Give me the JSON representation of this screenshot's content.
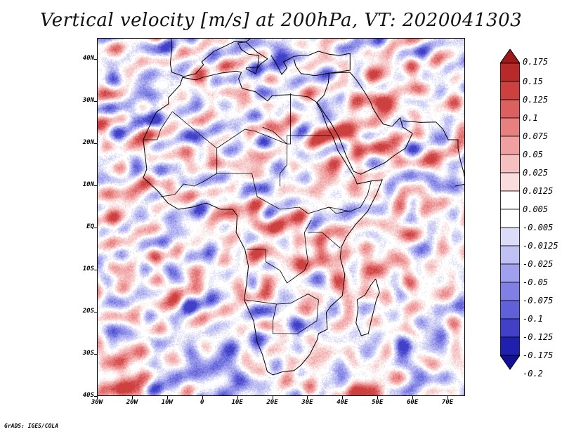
{
  "title": "Vertical velocity [m/s] at 200hPa, VT: 2020041303",
  "credit": "GrADS: IGES/COLA",
  "map": {
    "lon_range": [
      -30,
      75
    ],
    "lat_range": [
      -40,
      45
    ],
    "lat_labels": [
      "40N",
      "30N",
      "20N",
      "10N",
      "EQ",
      "10S",
      "20S",
      "30S",
      "40S"
    ],
    "lat_values": [
      40,
      30,
      20,
      10,
      0,
      -10,
      -20,
      -30,
      -40
    ],
    "lon_labels": [
      "30W",
      "20W",
      "10W",
      "0",
      "10E",
      "20E",
      "30E",
      "40E",
      "50E",
      "60E",
      "70E"
    ],
    "lon_values": [
      -30,
      -20,
      -10,
      0,
      10,
      20,
      30,
      40,
      50,
      60,
      70
    ]
  },
  "colorbar": {
    "levels": [
      "0.175",
      "0.15",
      "0.125",
      "0.1",
      "0.075",
      "0.05",
      "0.025",
      "0.0125",
      "0.005",
      "-0.005",
      "-0.0125",
      "-0.025",
      "-0.05",
      "-0.075",
      "-0.1",
      "-0.125",
      "-0.175",
      "-0.2"
    ],
    "colors": [
      "#a01818",
      "#b82a2a",
      "#cc4040",
      "#dc6060",
      "#e88080",
      "#f0a0a0",
      "#f6c0c0",
      "#fadcdc",
      "#ffffff",
      "#ffffff",
      "#dcdcf8",
      "#c0c0f4",
      "#a0a0ee",
      "#8080e4",
      "#6060d8",
      "#4040c8",
      "#2020b0",
      "#10109a"
    ]
  }
}
